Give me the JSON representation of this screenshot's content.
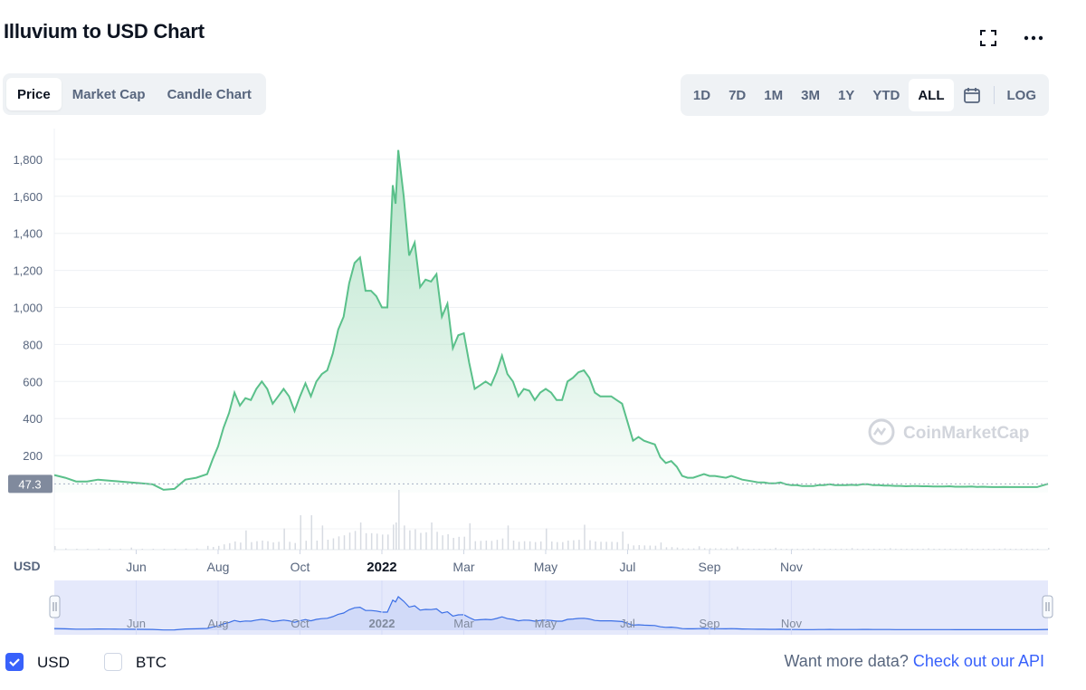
{
  "header": {
    "title": "Illuvium to USD Chart"
  },
  "icons": {
    "fullscreen": "fullscreen-icon",
    "more": "more-dots-icon",
    "calendar": "calendar-icon"
  },
  "tabs": [
    {
      "label": "Price",
      "active": true
    },
    {
      "label": "Market Cap",
      "active": false
    },
    {
      "label": "Candle Chart",
      "active": false
    }
  ],
  "ranges": [
    {
      "label": "1D",
      "active": false
    },
    {
      "label": "7D",
      "active": false
    },
    {
      "label": "1M",
      "active": false
    },
    {
      "label": "3M",
      "active": false
    },
    {
      "label": "1Y",
      "active": false
    },
    {
      "label": "YTD",
      "active": false
    },
    {
      "label": "ALL",
      "active": true
    }
  ],
  "log_label": "LOG",
  "colors": {
    "line": "#5ac08a",
    "fill_top": "#a8dfc0",
    "navigator_line": "#3b6fe6",
    "navigator_bg": "#e5e9fb",
    "accent": "#3861fb"
  },
  "chart_data": {
    "type": "area",
    "ylabel": "USD",
    "yticks": [
      200,
      400,
      600,
      800,
      1000,
      1200,
      1400,
      1600,
      1800
    ],
    "ylim": [
      0,
      1900
    ],
    "xlim": [
      0,
      364
    ],
    "xticks": [
      {
        "label": "Jun",
        "x": 30
      },
      {
        "label": "Aug",
        "x": 60
      },
      {
        "label": "Oct",
        "x": 90
      },
      {
        "label": "2022",
        "x": 120
      },
      {
        "label": "Mar",
        "x": 150
      },
      {
        "label": "May",
        "x": 180
      },
      {
        "label": "Jul",
        "x": 210
      },
      {
        "label": "Sep",
        "x": 240
      },
      {
        "label": "Nov",
        "x": 270
      }
    ],
    "current_price_label": "47.3",
    "current_price": 47.3,
    "watermark": "CoinMarketCap",
    "series": [
      {
        "values": [
          [
            0,
            95
          ],
          [
            4,
            80
          ],
          [
            8,
            60
          ],
          [
            12,
            60
          ],
          [
            16,
            70
          ],
          [
            20,
            65
          ],
          [
            24,
            60
          ],
          [
            28,
            55
          ],
          [
            32,
            50
          ],
          [
            36,
            45
          ],
          [
            40,
            15
          ],
          [
            44,
            20
          ],
          [
            48,
            70
          ],
          [
            52,
            80
          ],
          [
            56,
            100
          ],
          [
            58,
            180
          ],
          [
            60,
            250
          ],
          [
            62,
            350
          ],
          [
            64,
            430
          ],
          [
            66,
            540
          ],
          [
            68,
            470
          ],
          [
            70,
            510
          ],
          [
            72,
            500
          ],
          [
            74,
            560
          ],
          [
            76,
            600
          ],
          [
            78,
            560
          ],
          [
            80,
            480
          ],
          [
            82,
            520
          ],
          [
            84,
            560
          ],
          [
            86,
            520
          ],
          [
            88,
            440
          ],
          [
            90,
            520
          ],
          [
            92,
            590
          ],
          [
            94,
            520
          ],
          [
            96,
            600
          ],
          [
            98,
            640
          ],
          [
            100,
            660
          ],
          [
            102,
            750
          ],
          [
            104,
            880
          ],
          [
            106,
            950
          ],
          [
            108,
            1130
          ],
          [
            110,
            1240
          ],
          [
            112,
            1270
          ],
          [
            114,
            1090
          ],
          [
            116,
            1090
          ],
          [
            118,
            1060
          ],
          [
            120,
            1000
          ],
          [
            122,
            1000
          ],
          [
            124,
            1660
          ],
          [
            125,
            1560
          ],
          [
            126,
            1850
          ],
          [
            128,
            1600
          ],
          [
            130,
            1280
          ],
          [
            132,
            1350
          ],
          [
            134,
            1110
          ],
          [
            136,
            1150
          ],
          [
            138,
            1140
          ],
          [
            140,
            1180
          ],
          [
            142,
            950
          ],
          [
            144,
            1020
          ],
          [
            146,
            780
          ],
          [
            148,
            850
          ],
          [
            150,
            860
          ],
          [
            152,
            700
          ],
          [
            154,
            560
          ],
          [
            156,
            580
          ],
          [
            158,
            600
          ],
          [
            160,
            580
          ],
          [
            162,
            650
          ],
          [
            164,
            740
          ],
          [
            166,
            640
          ],
          [
            168,
            600
          ],
          [
            170,
            520
          ],
          [
            172,
            560
          ],
          [
            174,
            550
          ],
          [
            176,
            500
          ],
          [
            178,
            540
          ],
          [
            180,
            560
          ],
          [
            182,
            540
          ],
          [
            184,
            500
          ],
          [
            186,
            500
          ],
          [
            188,
            600
          ],
          [
            190,
            620
          ],
          [
            192,
            650
          ],
          [
            194,
            660
          ],
          [
            196,
            620
          ],
          [
            198,
            540
          ],
          [
            200,
            520
          ],
          [
            202,
            520
          ],
          [
            204,
            520
          ],
          [
            206,
            500
          ],
          [
            208,
            480
          ],
          [
            210,
            380
          ],
          [
            212,
            280
          ],
          [
            214,
            300
          ],
          [
            216,
            280
          ],
          [
            218,
            270
          ],
          [
            220,
            260
          ],
          [
            222,
            190
          ],
          [
            224,
            160
          ],
          [
            226,
            170
          ],
          [
            228,
            140
          ],
          [
            230,
            90
          ],
          [
            232,
            80
          ],
          [
            234,
            80
          ],
          [
            236,
            90
          ],
          [
            238,
            100
          ],
          [
            240,
            90
          ],
          [
            242,
            90
          ],
          [
            244,
            85
          ],
          [
            246,
            80
          ],
          [
            248,
            90
          ],
          [
            250,
            80
          ],
          [
            252,
            70
          ],
          [
            254,
            65
          ],
          [
            256,
            60
          ],
          [
            258,
            55
          ],
          [
            260,
            55
          ],
          [
            262,
            50
          ],
          [
            264,
            50
          ],
          [
            266,
            55
          ],
          [
            268,
            45
          ],
          [
            270,
            40
          ],
          [
            272,
            40
          ],
          [
            274,
            35
          ],
          [
            276,
            35
          ],
          [
            278,
            35
          ],
          [
            280,
            40
          ],
          [
            282,
            40
          ],
          [
            284,
            45
          ],
          [
            286,
            40
          ],
          [
            288,
            40
          ],
          [
            290,
            40
          ],
          [
            292,
            42
          ],
          [
            294,
            40
          ],
          [
            296,
            45
          ],
          [
            298,
            45
          ],
          [
            300,
            40
          ],
          [
            302,
            40
          ],
          [
            304,
            38
          ],
          [
            306,
            38
          ],
          [
            308,
            36
          ],
          [
            310,
            36
          ],
          [
            312,
            34
          ],
          [
            314,
            35
          ],
          [
            316,
            35
          ],
          [
            318,
            34
          ],
          [
            320,
            34
          ],
          [
            322,
            33
          ],
          [
            324,
            33
          ],
          [
            326,
            33
          ],
          [
            328,
            34
          ],
          [
            330,
            32
          ],
          [
            332,
            32
          ],
          [
            334,
            32
          ],
          [
            336,
            33
          ],
          [
            338,
            31
          ],
          [
            340,
            32
          ],
          [
            342,
            31
          ],
          [
            344,
            30
          ],
          [
            346,
            30
          ],
          [
            348,
            31
          ],
          [
            350,
            30
          ],
          [
            352,
            30
          ],
          [
            354,
            30
          ],
          [
            356,
            30
          ],
          [
            358,
            30
          ],
          [
            360,
            30
          ],
          [
            364,
            47.3
          ]
        ]
      }
    ]
  },
  "footer": {
    "usd_label": "USD",
    "btc_label": "BTC",
    "usd_checked": true,
    "btc_checked": false,
    "api_prompt": "Want more data?",
    "api_link": "Check out our API"
  }
}
